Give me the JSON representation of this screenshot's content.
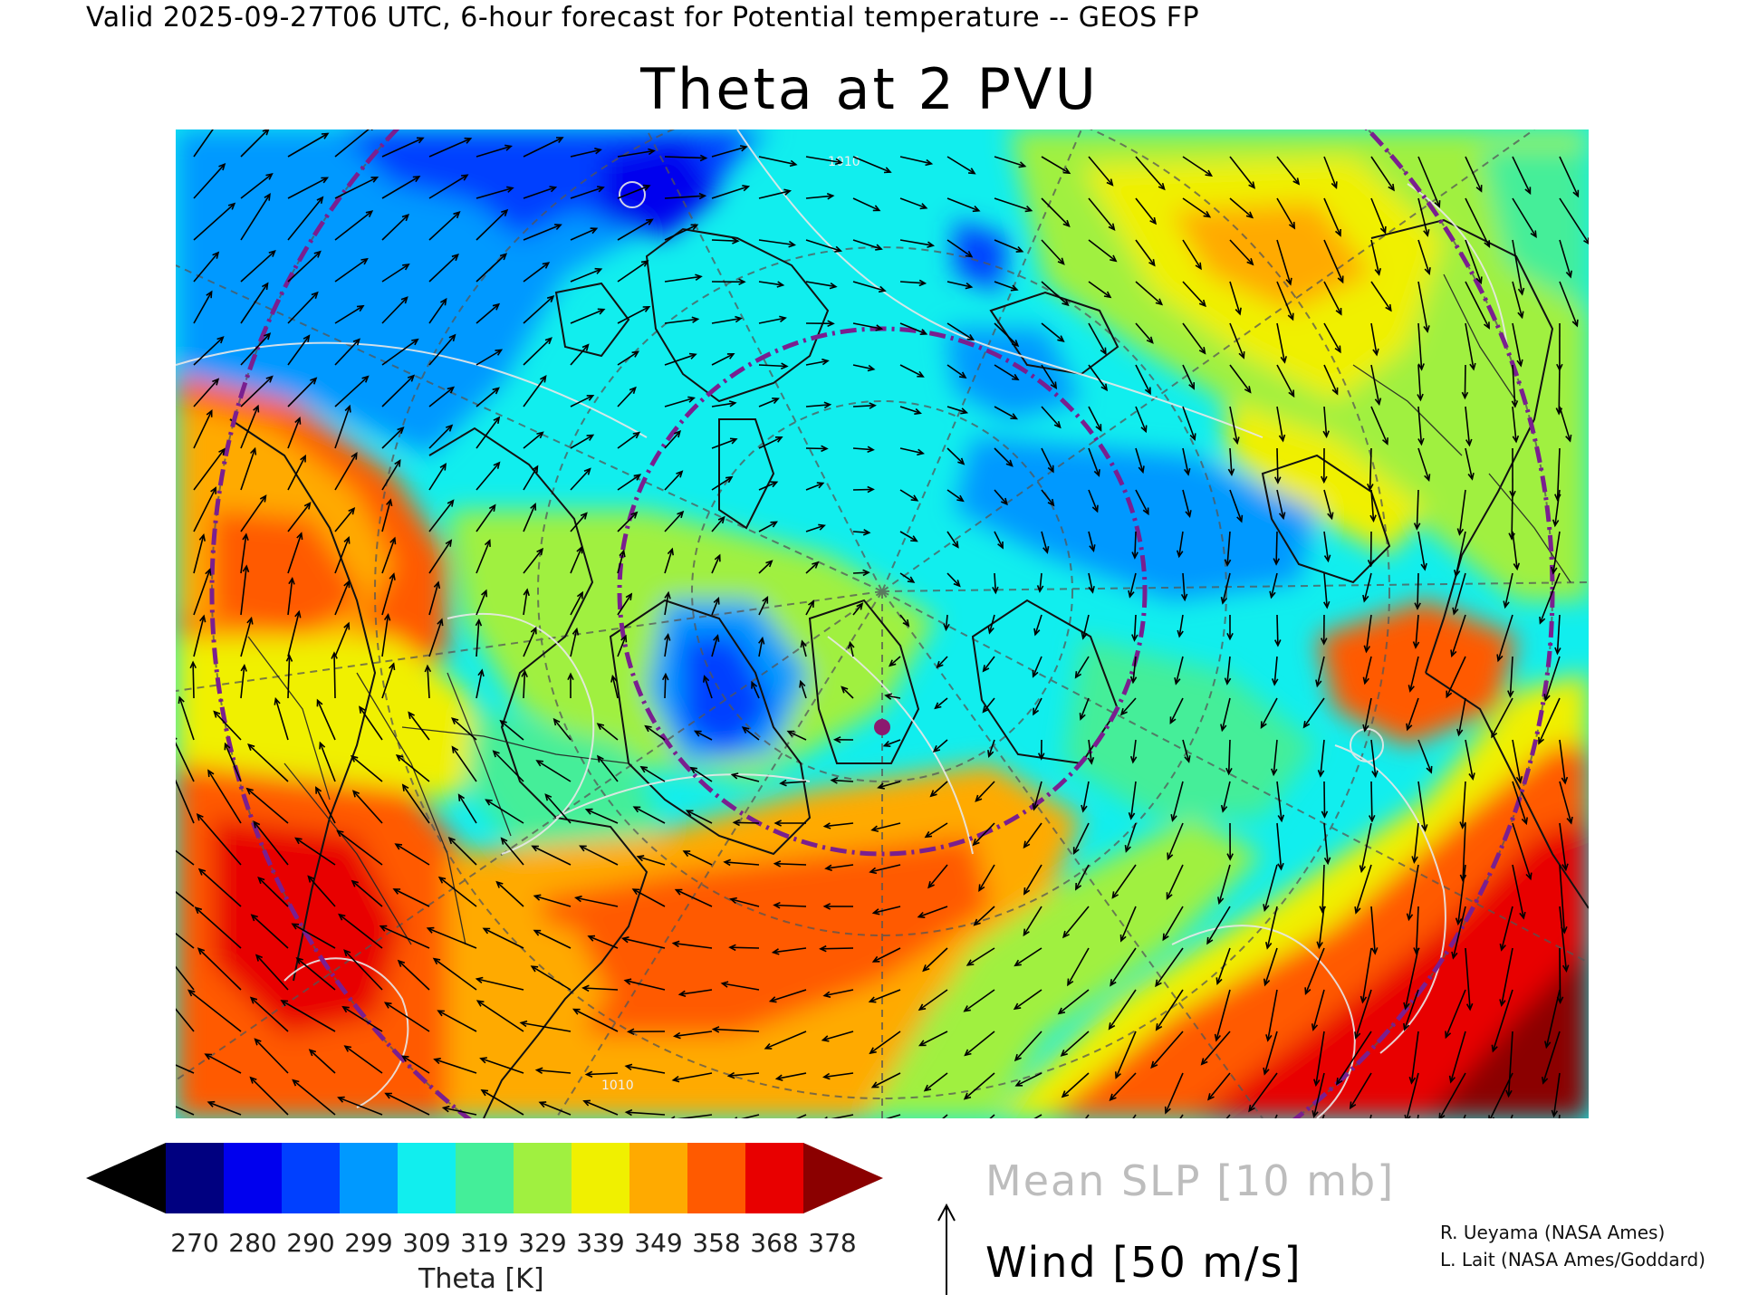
{
  "header": {
    "valid_line": "Valid 2025-09-27T06 UTC, 6-hour forecast for Potential temperature -- GEOS FP"
  },
  "map": {
    "title": "Theta at 2 PVU",
    "projection": "polar stereographic (North Atlantic / North America)",
    "overlays": [
      "theta-filled-contours",
      "mean-slp-contours",
      "wind-vectors",
      "coastlines",
      "political-boundaries",
      "lat-lon-grid",
      "purple-range-rings"
    ],
    "slp_contour_label": "1010"
  },
  "colorbar": {
    "label": "Theta [K]",
    "tick_labels": [
      "270",
      "280",
      "290",
      "299",
      "309",
      "319",
      "329",
      "339",
      "349",
      "358",
      "368",
      "378"
    ],
    "colors": [
      "#000000",
      "#000080",
      "#0000ee",
      "#0040ff",
      "#0099ff",
      "#11eeee",
      "#44ee99",
      "#a0f040",
      "#f0f000",
      "#ffaa00",
      "#ff5a00",
      "#e80000",
      "#8b0000"
    ]
  },
  "legend": {
    "slp": "Mean SLP [10 mb]",
    "wind": "Wind [50 m/s]"
  },
  "credits": {
    "line1": "R. Ueyama (NASA Ames)",
    "line2": "L. Lait (NASA Ames/Goddard)"
  }
}
